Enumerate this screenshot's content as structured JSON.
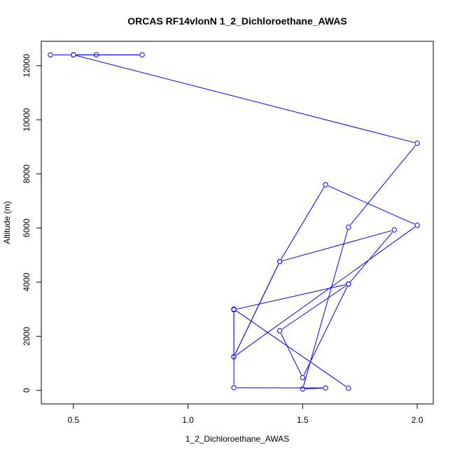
{
  "chart_data": {
    "type": "line",
    "title": "ORCAS RF14vlonN 1_2_Dichloroethane_AWAS",
    "xlabel": "1_2_Dichloroethane_AWAS",
    "ylabel": "Altitude (m)",
    "xlim": [
      0.36,
      2.07
    ],
    "ylim": [
      -500,
      12900
    ],
    "x_ticks": [
      0.5,
      1.0,
      1.5,
      2.0
    ],
    "x_tick_labels": [
      "0.5",
      "1.0",
      "1.5",
      "2.0"
    ],
    "y_ticks": [
      0,
      2000,
      4000,
      6000,
      8000,
      10000,
      12000
    ],
    "y_tick_labels": [
      "0",
      "2000",
      "4000",
      "6000",
      "8000",
      "10000",
      "12000"
    ],
    "grid": false,
    "legend": "none",
    "series_color": "#0000ff",
    "series": [
      {
        "x": [
          0.4,
          0.5,
          0.6,
          0.8,
          0.5,
          2.0,
          1.7,
          1.5,
          1.6,
          1.2,
          1.2,
          1.7,
          1.5,
          1.4,
          1.7,
          1.9,
          1.4,
          1.2,
          2.0,
          1.6,
          1.4,
          1.2,
          1.2,
          1.7
        ],
        "y": [
          12400,
          12400,
          12400,
          12400,
          12400,
          9130,
          6030,
          50,
          90,
          100,
          2980,
          3930,
          470,
          2200,
          3930,
          5930,
          4760,
          1240,
          6100,
          7600,
          4760,
          1240,
          3000,
          80
        ]
      }
    ]
  }
}
